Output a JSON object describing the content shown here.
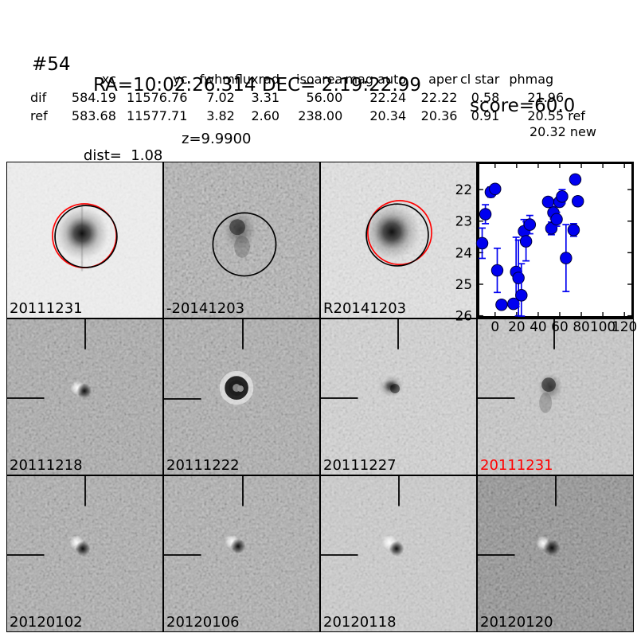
{
  "header": {
    "candidate_id": "#54",
    "coordinates": "RA=10:02:26.314 DEC= 2:19:22.99",
    "score": "score=60.0"
  },
  "measurements": {
    "columns": [
      "xc",
      "yc",
      "fwhm",
      "fluxrad",
      "isoarea",
      "mag auto",
      "aper",
      "cl star",
      "phmag"
    ],
    "rows": [
      {
        "label": "dif",
        "xc": "584.19",
        "yc": "11576.76",
        "fwhm": "7.02",
        "fluxrad": "3.31",
        "isoarea": "56.00",
        "mag_auto": "22.24",
        "aper": "22.22",
        "cl_star": "0.58",
        "phmag": "21.96"
      },
      {
        "label": "ref",
        "xc": "583.68",
        "yc": "11577.71",
        "fwhm": "3.82",
        "fluxrad": "2.60",
        "isoarea": "238.00",
        "mag_auto": "20.34",
        "aper": "20.36",
        "cl_star": "0.91",
        "phmag": "20.55 ref"
      }
    ],
    "phmag_extra": "20.32 new",
    "dist": "dist=  1.08",
    "z": "z=9.9900"
  },
  "panels": [
    {
      "label": "20111231",
      "label_color": "#000000",
      "bg": "#f0f0f0"
    },
    {
      "label": "-20141203",
      "label_color": "#000000",
      "bg": "#b4b4b4"
    },
    {
      "label": "R20141203",
      "label_color": "#000000",
      "bg": "#e5e5e5"
    },
    {
      "label": "20111218",
      "label_color": "#000000",
      "bg": "#ababab"
    },
    {
      "label": "20111222",
      "label_color": "#000000",
      "bg": "#aeaeae"
    },
    {
      "label": "20111227",
      "label_color": "#000000",
      "bg": "#d6d6d6"
    },
    {
      "label": "20111231",
      "label_color": "#ff0000",
      "bg": "#cbcbcb"
    },
    {
      "label": "20120102",
      "label_color": "#000000",
      "bg": "#aeaeae"
    },
    {
      "label": "20120106",
      "label_color": "#000000",
      "bg": "#b0b0b0"
    },
    {
      "label": "20120118",
      "label_color": "#000000",
      "bg": "#cfcfcf"
    },
    {
      "label": "20120120",
      "label_color": "#000000",
      "bg": "#8e8e8e"
    }
  ],
  "annotation_colors": {
    "aperture_black": "#000000",
    "aperture_red": "#ff0000",
    "marker_blue": "#0000f0"
  },
  "chart_data": {
    "type": "scatter",
    "title": "",
    "xlabel": "",
    "ylabel": "",
    "xticks": [
      0,
      20,
      40,
      60,
      80,
      100,
      120
    ],
    "yticks": [
      22,
      23,
      24,
      25,
      26
    ],
    "xlim": [
      -16.1,
      128.0
    ],
    "ylim": [
      21.14,
      26.06
    ],
    "y_inverted": true,
    "grid": false,
    "legend": "none",
    "series": [
      {
        "name": "difference-photometry-lightcurve",
        "color": "#0000f0",
        "points": [
          {
            "x": -12,
            "y": 23.7,
            "err": 0.48
          },
          {
            "x": -9,
            "y": 22.78,
            "err": 0.3
          },
          {
            "x": -4,
            "y": 22.08,
            "err": 0.16
          },
          {
            "x": 0,
            "y": 21.98,
            "err": 0.1
          },
          {
            "x": 2,
            "y": 24.56,
            "err": 0.7
          },
          {
            "x": 6,
            "y": 25.65,
            "err": 0.12
          },
          {
            "x": 17,
            "y": 25.62,
            "err": 0.12
          },
          {
            "x": 19.5,
            "y": 24.61,
            "err": 1.1
          },
          {
            "x": 21.7,
            "y": 24.8,
            "err": 1.2
          },
          {
            "x": 24.4,
            "y": 25.35,
            "err": 1.0
          },
          {
            "x": 26.8,
            "y": 23.32,
            "err": 0.37
          },
          {
            "x": 28.7,
            "y": 23.64,
            "err": 0.62
          },
          {
            "x": 32.2,
            "y": 23.11,
            "err": 0.29
          },
          {
            "x": 49.2,
            "y": 22.39,
            "err": 0.13
          },
          {
            "x": 52.2,
            "y": 23.23,
            "err": 0.2
          },
          {
            "x": 54.1,
            "y": 22.73,
            "err": 0.2
          },
          {
            "x": 57.1,
            "y": 22.94,
            "err": 0.22
          },
          {
            "x": 59.8,
            "y": 22.39,
            "err": 0.15
          },
          {
            "x": 62.2,
            "y": 22.22,
            "err": 0.22
          },
          {
            "x": 65.8,
            "y": 24.17,
            "err": 1.06
          },
          {
            "x": 72.9,
            "y": 23.28,
            "err": 0.2
          },
          {
            "x": 74.4,
            "y": 21.68,
            "err": 0.1
          },
          {
            "x": 76.8,
            "y": 22.37,
            "err": 0.15
          }
        ]
      }
    ]
  }
}
